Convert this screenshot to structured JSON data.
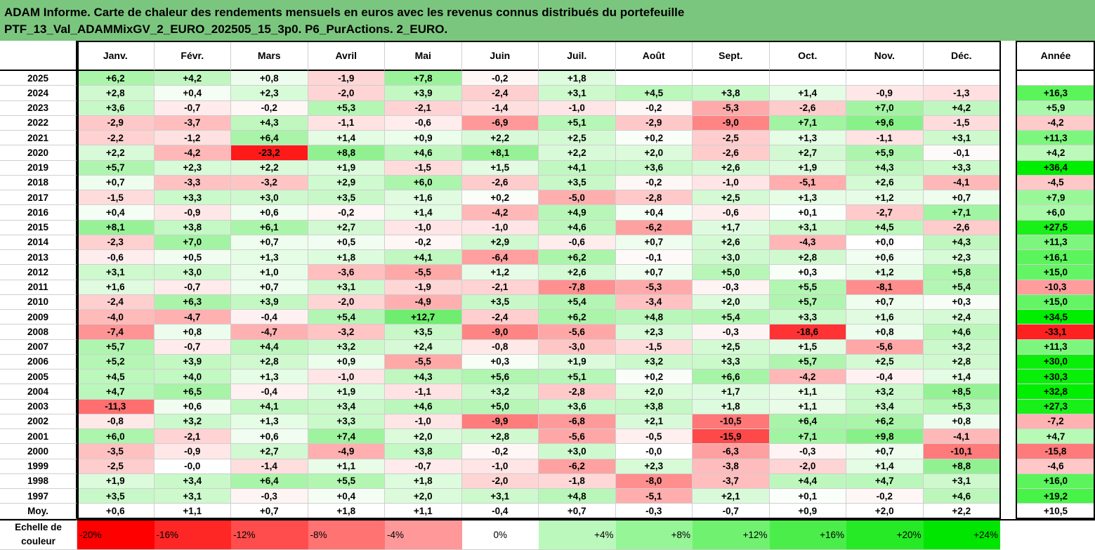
{
  "header": {
    "line1": "ADAM Informe. Carte de chaleur des rendements mensuels en euros avec les revenus connus distribués du portefeuille",
    "line2": "PTF_13_Val_ADAMMixGV_2_EURO_202505_15_3p0. P6_PurActions. 2_EURO."
  },
  "colors": {
    "header_bg": "#7bc67e",
    "neg_max": "#ff0000",
    "pos_max": "#00ff00",
    "neutral": "#ffffff"
  },
  "chart_data": {
    "type": "heatmap",
    "months": [
      "Janv.",
      "Févr.",
      "Mars",
      "Avril",
      "Mai",
      "Juin",
      "Juil.",
      "Août",
      "Sept.",
      "Oct.",
      "Nov.",
      "Déc."
    ],
    "year_label": "Année",
    "rows": [
      {
        "year": "2025",
        "m": [
          "+6,2",
          "+4,2",
          "+0,8",
          "-1,9",
          "+7,8",
          "-0,2",
          "+1,8",
          "",
          "",
          "",
          "",
          ""
        ],
        "y": ""
      },
      {
        "year": "2024",
        "m": [
          "+2,8",
          "+0,4",
          "+2,3",
          "-2,0",
          "+3,9",
          "-2,4",
          "+3,1",
          "+4,5",
          "+3,8",
          "+1,4",
          "-0,9",
          "-1,3"
        ],
        "y": "+16,3"
      },
      {
        "year": "2023",
        "m": [
          "+3,6",
          "-0,7",
          "-0,2",
          "+5,3",
          "-2,1",
          "-1,4",
          "-1,0",
          "-0,2",
          "-5,3",
          "-2,6",
          "+7,0",
          "+4,2"
        ],
        "y": "+5,9"
      },
      {
        "year": "2022",
        "m": [
          "-2,9",
          "-3,7",
          "+4,3",
          "-1,1",
          "-0,6",
          "-6,9",
          "+5,1",
          "-2,9",
          "-9,0",
          "+7,1",
          "+9,6",
          "-1,5"
        ],
        "y": "-4,2"
      },
      {
        "year": "2021",
        "m": [
          "-2,2",
          "-1,2",
          "+6,4",
          "+1,4",
          "+0,9",
          "+2,2",
          "+2,5",
          "+0,2",
          "-2,5",
          "+1,3",
          "-1,1",
          "+3,1"
        ],
        "y": "+11,3"
      },
      {
        "year": "2020",
        "m": [
          "+2,2",
          "-4,2",
          "-23,2",
          "+8,8",
          "+4,6",
          "+8,1",
          "+2,2",
          "+2,0",
          "-2,6",
          "+2,7",
          "+5,9",
          "-0,1"
        ],
        "y": "+4,2"
      },
      {
        "year": "2019",
        "m": [
          "+5,7",
          "+2,3",
          "+2,2",
          "+1,9",
          "-1,5",
          "+1,5",
          "+4,1",
          "+3,6",
          "+2,6",
          "+1,9",
          "+4,3",
          "+3,3"
        ],
        "y": "+36,4"
      },
      {
        "year": "2018",
        "m": [
          "+0,7",
          "-3,3",
          "-3,2",
          "+2,9",
          "+6,0",
          "-2,6",
          "+3,5",
          "-0,2",
          "-1,0",
          "-5,1",
          "+2,6",
          "-4,1"
        ],
        "y": "-4,5"
      },
      {
        "year": "2017",
        "m": [
          "-1,5",
          "+3,3",
          "+3,0",
          "+3,5",
          "+1,6",
          "+0,2",
          "-5,0",
          "-2,8",
          "+2,5",
          "+1,3",
          "+1,2",
          "+0,7"
        ],
        "y": "+7,9"
      },
      {
        "year": "2016",
        "m": [
          "+0,4",
          "-0,9",
          "+0,6",
          "-0,2",
          "+1,4",
          "-4,2",
          "+4,9",
          "+0,4",
          "-0,6",
          "+0,1",
          "-2,7",
          "+7,1"
        ],
        "y": "+6,0"
      },
      {
        "year": "2015",
        "m": [
          "+8,1",
          "+3,8",
          "+6,1",
          "+2,7",
          "-1,0",
          "-1,0",
          "+4,6",
          "-6,2",
          "+1,7",
          "+3,1",
          "+4,5",
          "-2,6"
        ],
        "y": "+27,5"
      },
      {
        "year": "2014",
        "m": [
          "-2,3",
          "+7,0",
          "+0,7",
          "+0,5",
          "-0,2",
          "+2,9",
          "-0,6",
          "+0,7",
          "+2,6",
          "-4,3",
          "+0,0",
          "+4,3"
        ],
        "y": "+11,3"
      },
      {
        "year": "2013",
        "m": [
          "-0,6",
          "+0,5",
          "+1,3",
          "+1,8",
          "+4,1",
          "-6,4",
          "+6,2",
          "-0,1",
          "+3,0",
          "+2,8",
          "+0,6",
          "+2,3"
        ],
        "y": "+16,1"
      },
      {
        "year": "2012",
        "m": [
          "+3,1",
          "+3,0",
          "+1,0",
          "-3,6",
          "-5,5",
          "+1,2",
          "+2,6",
          "+0,7",
          "+5,0",
          "+0,3",
          "+1,2",
          "+5,8"
        ],
        "y": "+15,0"
      },
      {
        "year": "2011",
        "m": [
          "+1,6",
          "-0,7",
          "+0,7",
          "+3,1",
          "-1,9",
          "-2,1",
          "-7,8",
          "-5,3",
          "-0,3",
          "+5,5",
          "-8,1",
          "+5,4"
        ],
        "y": "-10,3"
      },
      {
        "year": "2010",
        "m": [
          "-2,4",
          "+6,3",
          "+3,9",
          "-2,0",
          "-4,9",
          "+3,5",
          "+5,4",
          "-3,4",
          "+2,0",
          "+5,7",
          "+0,7",
          "+0,3"
        ],
        "y": "+15,0"
      },
      {
        "year": "2009",
        "m": [
          "-4,0",
          "-4,7",
          "-0,4",
          "+5,4",
          "+12,7",
          "-2,4",
          "+6,2",
          "+4,8",
          "+5,4",
          "+3,3",
          "+1,6",
          "+2,4"
        ],
        "y": "+34,5"
      },
      {
        "year": "2008",
        "m": [
          "-7,4",
          "+0,8",
          "-4,7",
          "-3,2",
          "+3,5",
          "-9,0",
          "-5,6",
          "+2,3",
          "-0,3",
          "-18,6",
          "+0,8",
          "+4,6"
        ],
        "y": "-33,1"
      },
      {
        "year": "2007",
        "m": [
          "+5,7",
          "-0,7",
          "+4,4",
          "+3,2",
          "+2,4",
          "-0,8",
          "-3,0",
          "-1,5",
          "+2,5",
          "+1,5",
          "-5,6",
          "+3,2"
        ],
        "y": "+11,3"
      },
      {
        "year": "2006",
        "m": [
          "+5,2",
          "+3,9",
          "+2,8",
          "+0,9",
          "-5,5",
          "+0,3",
          "+1,9",
          "+3,2",
          "+3,3",
          "+5,7",
          "+2,5",
          "+2,8"
        ],
        "y": "+30,0"
      },
      {
        "year": "2005",
        "m": [
          "+4,5",
          "+4,0",
          "+1,3",
          "-1,0",
          "+4,3",
          "+5,6",
          "+5,1",
          "+0,2",
          "+6,6",
          "-4,2",
          "-0,4",
          "+1,4"
        ],
        "y": "+30,3"
      },
      {
        "year": "2004",
        "m": [
          "+4,7",
          "+6,5",
          "-0,4",
          "+1,9",
          "-1,1",
          "+3,2",
          "-2,8",
          "+2,0",
          "+1,7",
          "+1,1",
          "+3,2",
          "+8,5"
        ],
        "y": "+32,8"
      },
      {
        "year": "2003",
        "m": [
          "-11,3",
          "+0,6",
          "+4,1",
          "+3,4",
          "+4,6",
          "+5,0",
          "+3,6",
          "+3,8",
          "+1,8",
          "+1,1",
          "+3,4",
          "+5,3"
        ],
        "y": "+27,3"
      },
      {
        "year": "2002",
        "m": [
          "-0,8",
          "+3,2",
          "+1,3",
          "+3,3",
          "-1,0",
          "-9,9",
          "-6,8",
          "+2,1",
          "-10,5",
          "+6,4",
          "+6,2",
          "+0,8"
        ],
        "y": "-7,2"
      },
      {
        "year": "2001",
        "m": [
          "+6,0",
          "-2,1",
          "+0,6",
          "+7,4",
          "+2,0",
          "+2,8",
          "-5,6",
          "-0,5",
          "-15,9",
          "+7,1",
          "+9,8",
          "-4,1"
        ],
        "y": "+4,7"
      },
      {
        "year": "2000",
        "m": [
          "-3,5",
          "-0,9",
          "+2,7",
          "-4,9",
          "+3,8",
          "-0,2",
          "+3,0",
          "-0,0",
          "-6,3",
          "-0,3",
          "+0,7",
          "-10,1"
        ],
        "y": "-15,8"
      },
      {
        "year": "1999",
        "m": [
          "-2,5",
          "-0,0",
          "-1,4",
          "+1,1",
          "-0,7",
          "-1,0",
          "-6,2",
          "+2,3",
          "-3,8",
          "-2,0",
          "+1,4",
          "+8,8"
        ],
        "y": "-4,6"
      },
      {
        "year": "1998",
        "m": [
          "+1,9",
          "+3,4",
          "+6,4",
          "+5,5",
          "+1,8",
          "-2,0",
          "-1,8",
          "-8,0",
          "-3,7",
          "+4,4",
          "+4,7",
          "+3,1"
        ],
        "y": "+16,0"
      },
      {
        "year": "1997",
        "m": [
          "+3,5",
          "+3,1",
          "-0,3",
          "+0,4",
          "+2,0",
          "+3,1",
          "+4,8",
          "-5,1",
          "+2,1",
          "+0,1",
          "-0,2",
          "+4,6"
        ],
        "y": "+19,2"
      }
    ],
    "average": {
      "label": "Moy.",
      "m": [
        "+0,6",
        "+1,1",
        "+0,7",
        "+1,8",
        "+1,1",
        "-0,4",
        "+0,7",
        "-0,3",
        "-0,7",
        "+0,9",
        "+2,0",
        "+2,2"
      ],
      "y": "+10,5"
    },
    "scale": {
      "label_line1": "Echelle de",
      "label_line2": "couleur",
      "steps": [
        "-20%",
        "-16%",
        "-12%",
        "-8%",
        "-4%",
        "0%",
        "+4%",
        "+8%",
        "+12%",
        "+16%",
        "+20%",
        "+24%"
      ]
    }
  }
}
